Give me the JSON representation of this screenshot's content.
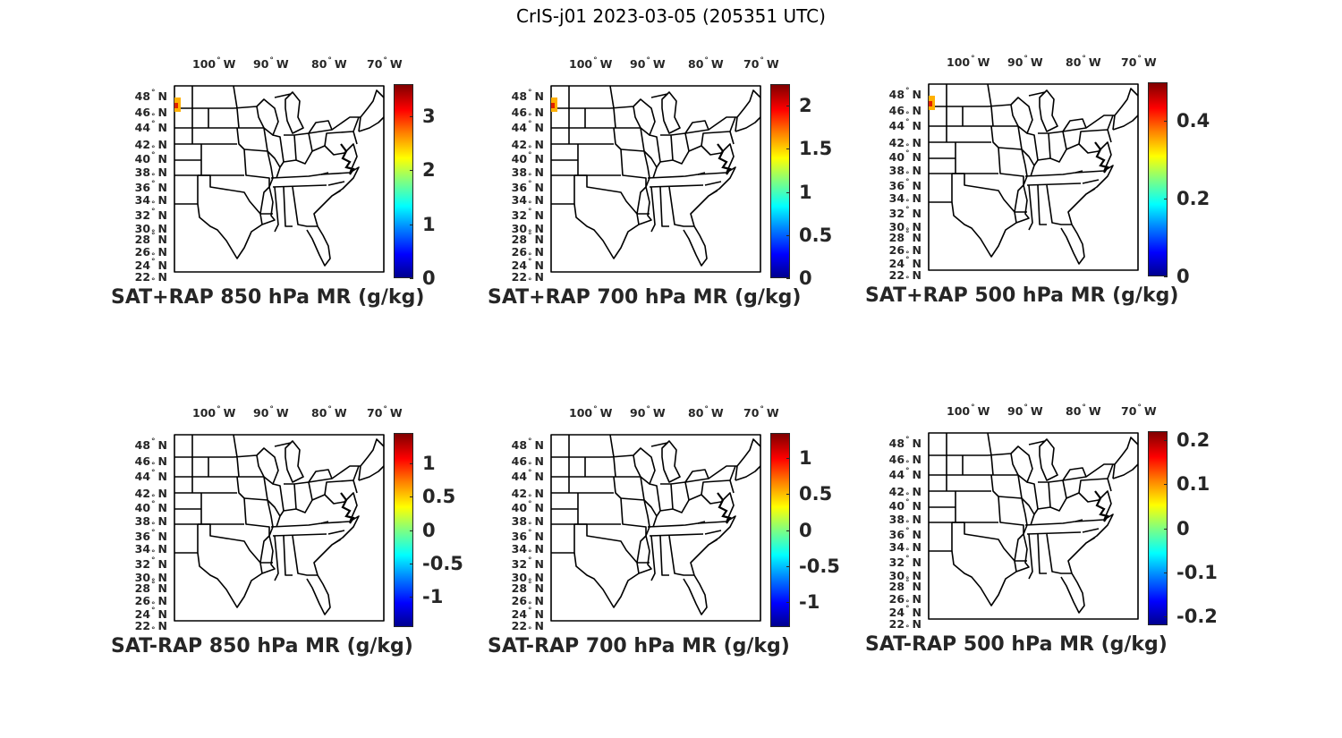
{
  "figure": {
    "title": "CrIS-j01 2023-03-05 (205351 UTC)"
  },
  "lon_ticks": [
    "100",
    "90",
    "80",
    "70"
  ],
  "lon_hemisphere": "W",
  "lat_ticks": [
    "48",
    "46",
    "44",
    "42",
    "40",
    "38",
    "36",
    "34",
    "32",
    "30",
    "28",
    "26",
    "24",
    "22"
  ],
  "lat_hemisphere": "N",
  "degree_symbol": "°",
  "panels": [
    {
      "label": "SAT+RAP 850 hPa MR (g/kg)",
      "cbar_ticks": [
        "0",
        "1",
        "2",
        "3"
      ],
      "cbar_range": [
        0,
        3.6
      ],
      "hotspot": true
    },
    {
      "label": "SAT+RAP 700 hPa MR (g/kg)",
      "cbar_ticks": [
        "0",
        "0.5",
        "1",
        "1.5",
        "2"
      ],
      "cbar_range": [
        0,
        2.25
      ],
      "hotspot": true
    },
    {
      "label": "SAT+RAP 500 hPa MR (g/kg)",
      "cbar_ticks": [
        "0",
        "0.2",
        "0.4"
      ],
      "cbar_range": [
        0,
        0.5
      ],
      "hotspot": true
    },
    {
      "label": "SAT-RAP 850 hPa MR (g/kg)",
      "cbar_ticks": [
        "-1",
        "-0.5",
        "0",
        "0.5",
        "1"
      ],
      "cbar_range": [
        -1.45,
        1.45
      ],
      "hotspot": false
    },
    {
      "label": "SAT-RAP 700 hPa MR (g/kg)",
      "cbar_ticks": [
        "-1",
        "-0.5",
        "0",
        "0.5",
        "1"
      ],
      "cbar_range": [
        -1.35,
        1.35
      ],
      "hotspot": false
    },
    {
      "label": "SAT-RAP 500 hPa MR (g/kg)",
      "cbar_ticks": [
        "-0.2",
        "-0.1",
        "0",
        "0.1",
        "0.2"
      ],
      "cbar_range": [
        -0.22,
        0.22
      ],
      "hotspot": false
    }
  ],
  "colormap": "jet"
}
